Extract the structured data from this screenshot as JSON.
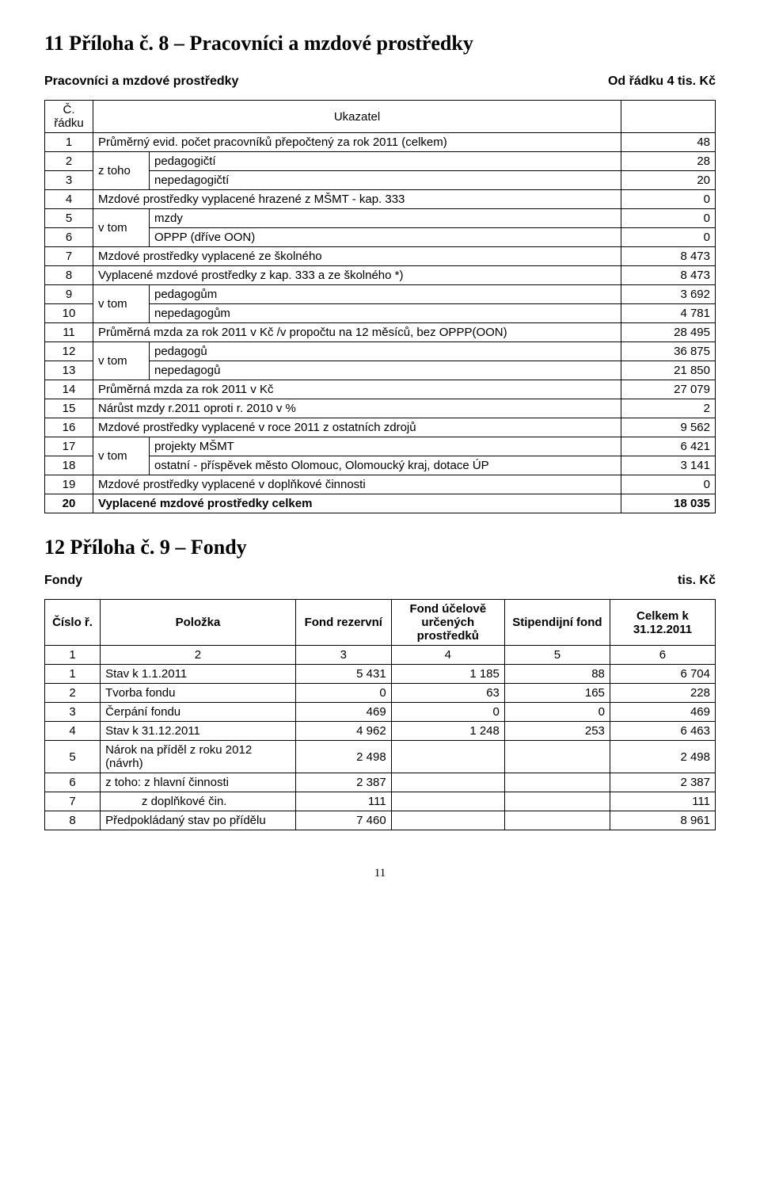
{
  "section1_title": "11 Příloha č. 8 – Pracovníci a mzdové prostředky",
  "section1_subtitle_left": "Pracovníci a mzdové prostředky",
  "section1_subtitle_right": "Od řádku 4 tis. Kč",
  "t1_header_col1": "Č. řádku",
  "t1_header_col2": "Ukazatel",
  "r1_num": "1",
  "r1_label": "Průměrný evid. počet pracovníků přepočtený za rok  2011 (celkem)",
  "r1_val": "48",
  "r2_num": "2",
  "r2_vtom": "z toho",
  "r2_label": "pedagogičtí",
  "r2_val": "28",
  "r3_num": "3",
  "r3_label": "nepedagogičtí",
  "r3_val": "20",
  "r4_num": "4",
  "r4_label": "Mzdové prostředky vyplacené  hrazené z MŠMT - kap. 333",
  "r4_val": "0",
  "r5_num": "5",
  "r5_vtom": "v tom",
  "r5_label": "mzdy",
  "r5_val": "0",
  "r6_num": "6",
  "r6_label": "OPPP (dříve OON)",
  "r6_val": "0",
  "r7_num": "7",
  "r7_label": "Mzdové prostředky vyplacené  ze školného",
  "r7_val": "8 473",
  "r8_num": "8",
  "r8_label": "Vyplacené mzdové prostředky z kap. 333 a ze školného *)",
  "r8_val": "8 473",
  "r9_num": "9",
  "r9_vtom": "v tom",
  "r9_label": "pedagogům",
  "r9_val": "3 692",
  "r10_num": "10",
  "r10_label": "nepedagogům",
  "r10_val": "4 781",
  "r11_num": "11",
  "r11_label": "Průměrná mzda za rok 2011 v Kč /v propočtu na 12 měsíců, bez OPPP(OON)",
  "r11_val": "28 495",
  "r12_num": "12",
  "r12_vtom": "v tom",
  "r12_label": "pedagogů",
  "r12_val": "36 875",
  "r13_num": "13",
  "r13_label": "nepedagogů",
  "r13_val": "21 850",
  "r14_num": "14",
  "r14_label": "Průměrná mzda za rok 2011 v Kč",
  "r14_val": "27 079",
  "r15_num": "15",
  "r15_label": "Nárůst mzdy r.2011 oproti r. 2010 v %",
  "r15_val": "2",
  "r16_num": "16",
  "r16_label": "Mzdové prostředky vyplacené v roce 2011 z ostatních zdrojů",
  "r16_val": "9 562",
  "r17_num": "17",
  "r17_vtom": "v tom",
  "r17_label": "projekty MŠMT",
  "r17_val": "6 421",
  "r18_num": "18",
  "r18_label": "ostatní - příspěvek město Olomouc, Olomoucký kraj, dotace ÚP",
  "r18_val": "3 141",
  "r19_num": "19",
  "r19_label": "Mzdové prostředky vyplacené v doplňkové činnosti",
  "r19_val": "0",
  "r20_num": "20",
  "r20_label": "Vyplacené mzdové prostředky celkem",
  "r20_val": "18 035",
  "section2_title": "12 Příloha č. 9 – Fondy",
  "section2_subtitle_left": "Fondy",
  "section2_subtitle_right": "tis. Kč",
  "t2_h1": "Číslo ř.",
  "t2_h2": "Položka",
  "t2_h3": "Fond rezervní",
  "t2_h4": "Fond účelově určených prostředků",
  "t2_h5": "Stipendijní fond",
  "t2_h6": "Celkem k 31.12.2011",
  "t2_idx1": "1",
  "t2_idx2": "2",
  "t2_idx3": "3",
  "t2_idx4": "4",
  "t2_idx5": "5",
  "t2_idx6": "6",
  "f1_num": "1",
  "f1_label": "Stav k 1.1.2011",
  "f1_c3": "5 431",
  "f1_c4": "1 185",
  "f1_c5": "88",
  "f1_c6": "6 704",
  "f2_num": "2",
  "f2_label": "Tvorba fondu",
  "f2_c3": "0",
  "f2_c4": "63",
  "f2_c5": "165",
  "f2_c6": "228",
  "f3_num": "3",
  "f3_label": "Čerpání fondu",
  "f3_c3": "469",
  "f3_c4": "0",
  "f3_c5": "0",
  "f3_c6": "469",
  "f4_num": "4",
  "f4_label": "Stav k 31.12.2011",
  "f4_c3": "4 962",
  "f4_c4": "1 248",
  "f4_c5": "253",
  "f4_c6": "6 463",
  "f5_num": "5",
  "f5_label": "Nárok na příděl z roku 2012 (návrh)",
  "f5_c3": "2 498",
  "f5_c4": "",
  "f5_c5": "",
  "f5_c6": "2 498",
  "f6_num": "6",
  "f6_label": "z toho: z hlavní činnosti",
  "f6_c3": "2 387",
  "f6_c4": "",
  "f6_c5": "",
  "f6_c6": "2 387",
  "f7_num": "7",
  "f7_label": "           z doplňkové čin.",
  "f7_c3": "111",
  "f7_c4": "",
  "f7_c5": "",
  "f7_c6": "111",
  "f8_num": "8",
  "f8_label": "Předpokládaný stav po přídělu",
  "f8_c3": "7 460",
  "f8_c4": "",
  "f8_c5": "",
  "f8_c6": "8 961",
  "page_number": "11"
}
